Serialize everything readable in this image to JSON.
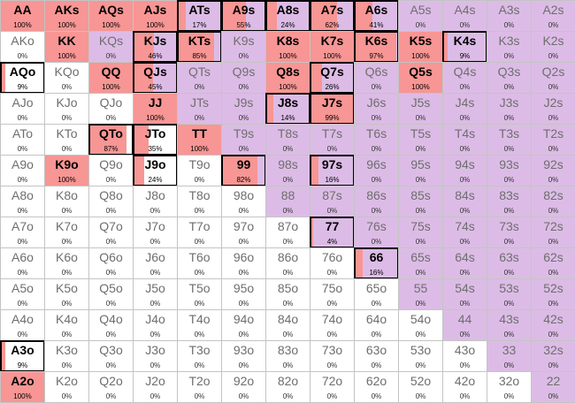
{
  "colors": {
    "pair_suited_bg": "#dcbce6",
    "offsuit_bg": "#ffffff",
    "fill": "#f79694",
    "selected_border": "#000000"
  },
  "matrix": [
    [
      {
        "h": "AA",
        "p": "100%"
      },
      {
        "h": "AKs",
        "p": "100%"
      },
      {
        "h": "AQs",
        "p": "100%"
      },
      {
        "h": "AJs",
        "p": "100%"
      },
      {
        "h": "ATs",
        "p": "17%"
      },
      {
        "h": "A9s",
        "p": "55%"
      },
      {
        "h": "A8s",
        "p": "24%"
      },
      {
        "h": "A7s",
        "p": "62%"
      },
      {
        "h": "A6s",
        "p": "41%"
      },
      {
        "h": "A5s",
        "p": "0%"
      },
      {
        "h": "A4s",
        "p": "0%"
      },
      {
        "h": "A3s",
        "p": "0%"
      },
      {
        "h": "A2s",
        "p": "0%"
      }
    ],
    [
      {
        "h": "AKo",
        "p": "0%"
      },
      {
        "h": "KK",
        "p": "100%"
      },
      {
        "h": "KQs",
        "p": "0%"
      },
      {
        "h": "KJs",
        "p": "46%"
      },
      {
        "h": "KTs",
        "p": "85%"
      },
      {
        "h": "K9s",
        "p": "0%"
      },
      {
        "h": "K8s",
        "p": "100%"
      },
      {
        "h": "K7s",
        "p": "100%"
      },
      {
        "h": "K6s",
        "p": "97%"
      },
      {
        "h": "K5s",
        "p": "100%"
      },
      {
        "h": "K4s",
        "p": "9%"
      },
      {
        "h": "K3s",
        "p": "0%"
      },
      {
        "h": "K2s",
        "p": "0%"
      }
    ],
    [
      {
        "h": "AQo",
        "p": "9%"
      },
      {
        "h": "KQo",
        "p": "0%"
      },
      {
        "h": "QQ",
        "p": "100%"
      },
      {
        "h": "QJs",
        "p": "45%"
      },
      {
        "h": "QTs",
        "p": "0%"
      },
      {
        "h": "Q9s",
        "p": "0%"
      },
      {
        "h": "Q8s",
        "p": "100%"
      },
      {
        "h": "Q7s",
        "p": "26%"
      },
      {
        "h": "Q6s",
        "p": "0%"
      },
      {
        "h": "Q5s",
        "p": "100%"
      },
      {
        "h": "Q4s",
        "p": "0%"
      },
      {
        "h": "Q3s",
        "p": "0%"
      },
      {
        "h": "Q2s",
        "p": "0%"
      }
    ],
    [
      {
        "h": "AJo",
        "p": "0%"
      },
      {
        "h": "KJo",
        "p": "0%"
      },
      {
        "h": "QJo",
        "p": "0%"
      },
      {
        "h": "JJ",
        "p": "100%"
      },
      {
        "h": "JTs",
        "p": "0%"
      },
      {
        "h": "J9s",
        "p": "0%"
      },
      {
        "h": "J8s",
        "p": "14%"
      },
      {
        "h": "J7s",
        "p": "99%"
      },
      {
        "h": "J6s",
        "p": "0%"
      },
      {
        "h": "J5s",
        "p": "0%"
      },
      {
        "h": "J4s",
        "p": "0%"
      },
      {
        "h": "J3s",
        "p": "0%"
      },
      {
        "h": "J2s",
        "p": "0%"
      }
    ],
    [
      {
        "h": "ATo",
        "p": "0%"
      },
      {
        "h": "KTo",
        "p": "0%"
      },
      {
        "h": "QTo",
        "p": "87%"
      },
      {
        "h": "JTo",
        "p": "35%"
      },
      {
        "h": "TT",
        "p": "100%"
      },
      {
        "h": "T9s",
        "p": "0%"
      },
      {
        "h": "T8s",
        "p": "0%"
      },
      {
        "h": "T7s",
        "p": "0%"
      },
      {
        "h": "T6s",
        "p": "0%"
      },
      {
        "h": "T5s",
        "p": "0%"
      },
      {
        "h": "T4s",
        "p": "0%"
      },
      {
        "h": "T3s",
        "p": "0%"
      },
      {
        "h": "T2s",
        "p": "0%"
      }
    ],
    [
      {
        "h": "A9o",
        "p": "0%"
      },
      {
        "h": "K9o",
        "p": "100%"
      },
      {
        "h": "Q9o",
        "p": "0%"
      },
      {
        "h": "J9o",
        "p": "24%"
      },
      {
        "h": "T9o",
        "p": "0%"
      },
      {
        "h": "99",
        "p": "82%"
      },
      {
        "h": "98s",
        "p": "0%"
      },
      {
        "h": "97s",
        "p": "16%"
      },
      {
        "h": "96s",
        "p": "0%"
      },
      {
        "h": "95s",
        "p": "0%"
      },
      {
        "h": "94s",
        "p": "0%"
      },
      {
        "h": "93s",
        "p": "0%"
      },
      {
        "h": "92s",
        "p": "0%"
      }
    ],
    [
      {
        "h": "A8o",
        "p": "0%"
      },
      {
        "h": "K8o",
        "p": "0%"
      },
      {
        "h": "Q8o",
        "p": "0%"
      },
      {
        "h": "J8o",
        "p": "0%"
      },
      {
        "h": "T8o",
        "p": "0%"
      },
      {
        "h": "98o",
        "p": "0%"
      },
      {
        "h": "88",
        "p": "0%"
      },
      {
        "h": "87s",
        "p": "0%"
      },
      {
        "h": "86s",
        "p": "0%"
      },
      {
        "h": "85s",
        "p": "0%"
      },
      {
        "h": "84s",
        "p": "0%"
      },
      {
        "h": "83s",
        "p": "0%"
      },
      {
        "h": "82s",
        "p": "0%"
      }
    ],
    [
      {
        "h": "A7o",
        "p": "0%"
      },
      {
        "h": "K7o",
        "p": "0%"
      },
      {
        "h": "Q7o",
        "p": "0%"
      },
      {
        "h": "J7o",
        "p": "0%"
      },
      {
        "h": "T7o",
        "p": "0%"
      },
      {
        "h": "97o",
        "p": "0%"
      },
      {
        "h": "87o",
        "p": "0%"
      },
      {
        "h": "77",
        "p": "4%"
      },
      {
        "h": "76s",
        "p": "0%"
      },
      {
        "h": "75s",
        "p": "0%"
      },
      {
        "h": "74s",
        "p": "0%"
      },
      {
        "h": "73s",
        "p": "0%"
      },
      {
        "h": "72s",
        "p": "0%"
      }
    ],
    [
      {
        "h": "A6o",
        "p": "0%"
      },
      {
        "h": "K6o",
        "p": "0%"
      },
      {
        "h": "Q6o",
        "p": "0%"
      },
      {
        "h": "J6o",
        "p": "0%"
      },
      {
        "h": "T6o",
        "p": "0%"
      },
      {
        "h": "96o",
        "p": "0%"
      },
      {
        "h": "86o",
        "p": "0%"
      },
      {
        "h": "76o",
        "p": "0%"
      },
      {
        "h": "66",
        "p": "16%"
      },
      {
        "h": "65s",
        "p": "0%"
      },
      {
        "h": "64s",
        "p": "0%"
      },
      {
        "h": "63s",
        "p": "0%"
      },
      {
        "h": "62s",
        "p": "0%"
      }
    ],
    [
      {
        "h": "A5o",
        "p": "0%"
      },
      {
        "h": "K5o",
        "p": "0%"
      },
      {
        "h": "Q5o",
        "p": "0%"
      },
      {
        "h": "J5o",
        "p": "0%"
      },
      {
        "h": "T5o",
        "p": "0%"
      },
      {
        "h": "95o",
        "p": "0%"
      },
      {
        "h": "85o",
        "p": "0%"
      },
      {
        "h": "75o",
        "p": "0%"
      },
      {
        "h": "65o",
        "p": "0%"
      },
      {
        "h": "55",
        "p": "0%"
      },
      {
        "h": "54s",
        "p": "0%"
      },
      {
        "h": "53s",
        "p": "0%"
      },
      {
        "h": "52s",
        "p": "0%"
      }
    ],
    [
      {
        "h": "A4o",
        "p": "0%"
      },
      {
        "h": "K4o",
        "p": "0%"
      },
      {
        "h": "Q4o",
        "p": "0%"
      },
      {
        "h": "J4o",
        "p": "0%"
      },
      {
        "h": "T4o",
        "p": "0%"
      },
      {
        "h": "94o",
        "p": "0%"
      },
      {
        "h": "84o",
        "p": "0%"
      },
      {
        "h": "74o",
        "p": "0%"
      },
      {
        "h": "64o",
        "p": "0%"
      },
      {
        "h": "54o",
        "p": "0%"
      },
      {
        "h": "44",
        "p": "0%"
      },
      {
        "h": "43s",
        "p": "0%"
      },
      {
        "h": "42s",
        "p": "0%"
      }
    ],
    [
      {
        "h": "A3o",
        "p": "9%"
      },
      {
        "h": "K3o",
        "p": "0%"
      },
      {
        "h": "Q3o",
        "p": "0%"
      },
      {
        "h": "J3o",
        "p": "0%"
      },
      {
        "h": "T3o",
        "p": "0%"
      },
      {
        "h": "93o",
        "p": "0%"
      },
      {
        "h": "83o",
        "p": "0%"
      },
      {
        "h": "73o",
        "p": "0%"
      },
      {
        "h": "63o",
        "p": "0%"
      },
      {
        "h": "53o",
        "p": "0%"
      },
      {
        "h": "43o",
        "p": "0%"
      },
      {
        "h": "33",
        "p": "0%"
      },
      {
        "h": "32s",
        "p": "0%"
      }
    ],
    [
      {
        "h": "A2o",
        "p": "100%"
      },
      {
        "h": "K2o",
        "p": "0%"
      },
      {
        "h": "Q2o",
        "p": "0%"
      },
      {
        "h": "J2o",
        "p": "0%"
      },
      {
        "h": "T2o",
        "p": "0%"
      },
      {
        "h": "92o",
        "p": "0%"
      },
      {
        "h": "82o",
        "p": "0%"
      },
      {
        "h": "72o",
        "p": "0%"
      },
      {
        "h": "62o",
        "p": "0%"
      },
      {
        "h": "52o",
        "p": "0%"
      },
      {
        "h": "42o",
        "p": "0%"
      },
      {
        "h": "32o",
        "p": "0%"
      },
      {
        "h": "22",
        "p": "0%"
      }
    ]
  ]
}
